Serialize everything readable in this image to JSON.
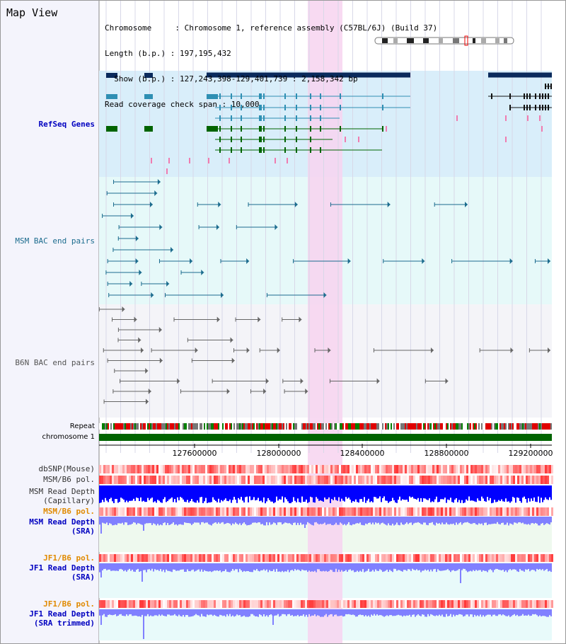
{
  "header": {
    "title": "Map View",
    "info_lines": [
      "Chromosome     : Chromosome 1, reference assembly (C57BL/6J) (Build 37)",
      "Length (b.p.) : 197,195,432",
      "  Show (b.p.) : 127,243,398-129,401,739 : 2,158,342 bp",
      "Read coverage check span : 10,000"
    ]
  },
  "tracks": {
    "refseq": "RefSeq Genes",
    "msm_bac": "MSM BAC end pairs",
    "b6n_bac": "B6N BAC end pairs",
    "repeat": "Repeat",
    "chromosome": "chromosome 1",
    "dbsnp": "dbSNP(Mouse)",
    "msm_b6_pol": "MSM/B6 pol.",
    "msm_depth_cap_1": "MSM Read Depth",
    "msm_depth_cap_2": "(Capillary)",
    "msm_b6_pol_2": "MSM/B6 pol.",
    "msm_depth_sra_1": "MSM Read Depth",
    "msm_depth_sra_2": "(SRA)",
    "jf1_b6_pol": "JF1/B6 pol.",
    "jf1_depth_sra_1": "JF1 Read Depth",
    "jf1_depth_sra_2": "(SRA)",
    "jf1_b6_pol_2": "JF1/B6 pol.",
    "jf1_depth_trim_1": "JF1 Read Depth",
    "jf1_depth_trim_2": "(SRA trimmed)"
  },
  "axis": {
    "ticks": [
      "127600000",
      "128000000",
      "128400000",
      "128800000",
      "129200000"
    ]
  },
  "colors": {
    "refseq_bg": "#d9eefa",
    "msm_bg": "#e6f9f9",
    "b6n_bg": "#f4f4f8",
    "highlight": "#f7d3f0",
    "gene_navy": "#0a2a5c",
    "gene_teal": "#2e8fb3",
    "gene_green": "#006400",
    "bac_teal": "#1c6c8e",
    "bac_gray": "#666666",
    "chrom_green": "#006400",
    "depth_blue": "#0000ff",
    "depth_lavender": "#8080ff"
  }
}
